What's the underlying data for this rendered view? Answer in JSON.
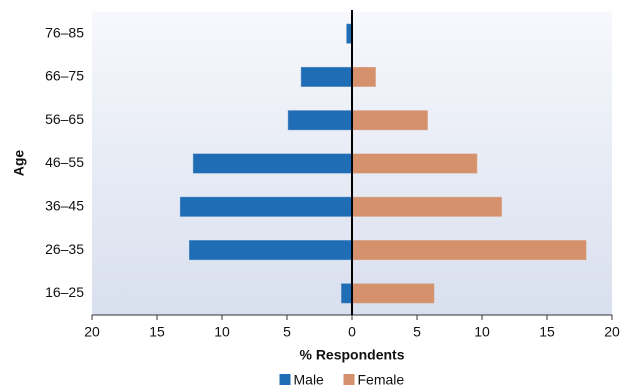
{
  "chart_data": {
    "type": "bar",
    "orientation": "horizontal",
    "y_label": "Age",
    "x_label": "% Respondents",
    "categories": [
      "16–25",
      "26–35",
      "36–45",
      "46–55",
      "56–65",
      "66–75",
      "76–85"
    ],
    "series": [
      {
        "name": "Male",
        "color": "#1f6db4",
        "values": [
          -0.8,
          -12.5,
          -13.2,
          -12.2,
          -4.9,
          -3.9,
          -0.4
        ]
      },
      {
        "name": "Female",
        "color": "#d4916c",
        "values": [
          6.3,
          18.0,
          11.5,
          9.6,
          5.8,
          1.8,
          0
        ]
      }
    ],
    "xlim": [
      -20,
      20
    ],
    "xticks": [
      {
        "value": -20,
        "label": "20"
      },
      {
        "value": -15,
        "label": "15"
      },
      {
        "value": -10,
        "label": "10"
      },
      {
        "value": -5,
        "label": "5"
      },
      0,
      5,
      10,
      15,
      20
    ],
    "legend": "bottom"
  }
}
